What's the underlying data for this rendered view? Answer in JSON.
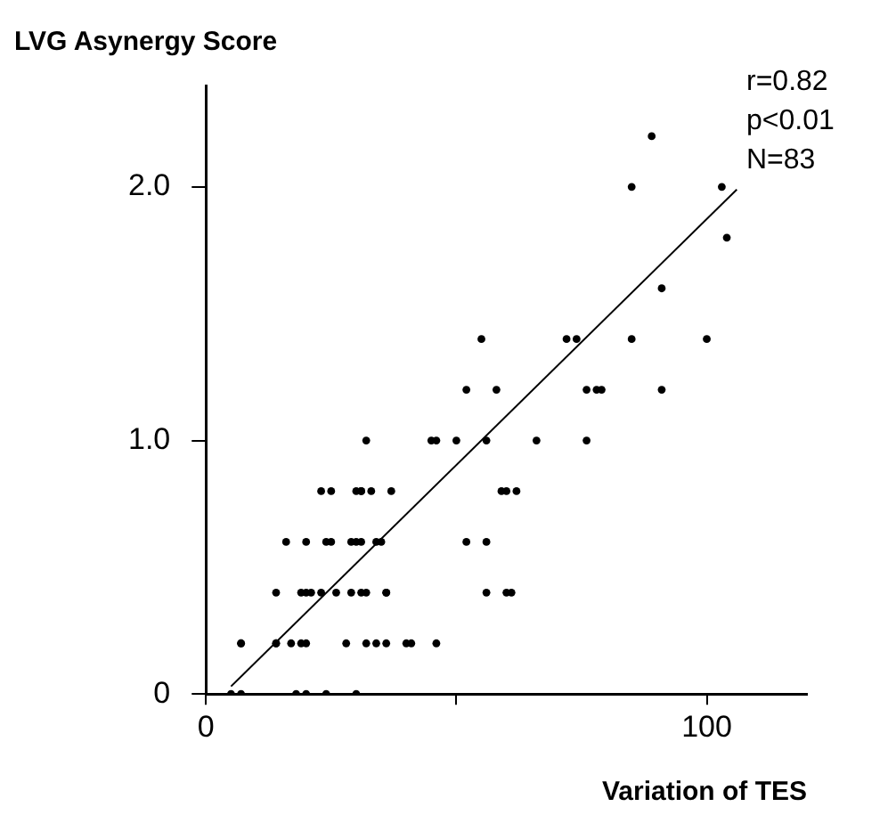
{
  "chart_data": {
    "type": "scatter",
    "xlabel": "Variation of TES",
    "ylabel": "LVG Asynergy Score",
    "annotations": [
      "r=0.82",
      "p<0.01",
      "N=83"
    ],
    "xlim": [
      0,
      120
    ],
    "xticks": [
      0,
      {
        "value": 50,
        "label": null
      },
      100
    ],
    "ylim": [
      0,
      2.4
    ],
    "yticks": [
      0,
      {
        "value": 1,
        "label": "1.0"
      },
      {
        "value": 2,
        "label": "2.0"
      }
    ],
    "grid": false,
    "legend": false,
    "series": [
      {
        "color": "#000000",
        "marker": "circle",
        "x": [
          5,
          7,
          18,
          20,
          24,
          30,
          7,
          7,
          14,
          14,
          17,
          19,
          20,
          28,
          32,
          34,
          36,
          40,
          41,
          46,
          14,
          19,
          20,
          21,
          23,
          26,
          29,
          31,
          32,
          36,
          36,
          56,
          60,
          61,
          16,
          20,
          24,
          25,
          29,
          30,
          31,
          34,
          35,
          52,
          56,
          23,
          25,
          30,
          31,
          31,
          33,
          37,
          59,
          60,
          62,
          32,
          45,
          46,
          50,
          56,
          66,
          76,
          52,
          58,
          76,
          78,
          79,
          91,
          55,
          72,
          74,
          85,
          100,
          91,
          104,
          85,
          103,
          89
        ],
        "values": [
          0,
          0,
          0,
          0,
          0,
          0,
          0.2,
          0.2,
          0.2,
          0.2,
          0.2,
          0.2,
          0.2,
          0.2,
          0.2,
          0.2,
          0.2,
          0.2,
          0.2,
          0.2,
          0.4,
          0.4,
          0.4,
          0.4,
          0.4,
          0.4,
          0.4,
          0.4,
          0.4,
          0.4,
          0.4,
          0.4,
          0.4,
          0.4,
          0.6,
          0.6,
          0.6,
          0.6,
          0.6,
          0.6,
          0.6,
          0.6,
          0.6,
          0.6,
          0.6,
          0.8,
          0.8,
          0.8,
          0.8,
          0.8,
          0.8,
          0.8,
          0.8,
          0.8,
          0.8,
          1.0,
          1.0,
          1.0,
          1.0,
          1.0,
          1.0,
          1.0,
          1.2,
          1.2,
          1.2,
          1.2,
          1.2,
          1.2,
          1.4,
          1.4,
          1.4,
          1.4,
          1.4,
          1.6,
          1.8,
          2.0,
          2.0,
          2.2
        ]
      },
      {
        "type": "line",
        "color": "#000000",
        "marker": "none",
        "x": [
          5,
          106
        ],
        "values": [
          0.03,
          1.99
        ]
      }
    ]
  }
}
